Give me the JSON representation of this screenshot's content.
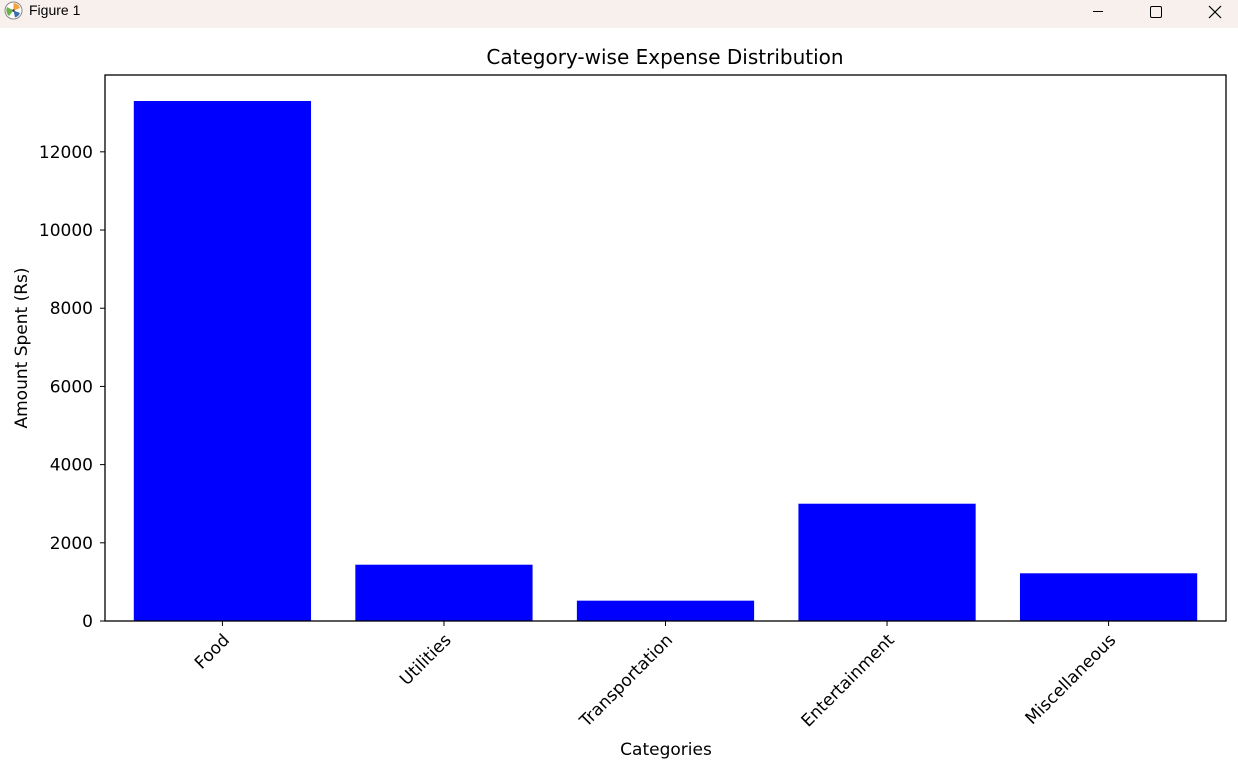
{
  "window": {
    "title": "Figure 1",
    "controls": [
      "minimize-icon",
      "maximize-icon",
      "close-icon"
    ],
    "icon": "matplotlib-app-icon"
  },
  "chart_data": {
    "type": "bar",
    "title": "Category-wise Expense Distribution",
    "xlabel": "Categories",
    "ylabel": "Amount Spent (Rs)",
    "categories": [
      "Food",
      "Utilities",
      "Transportation",
      "Entertainment",
      "Miscellaneous"
    ],
    "values": [
      13300,
      1440,
      520,
      3000,
      1220
    ],
    "ylim": [
      0,
      13965
    ],
    "yticks": [
      0,
      2000,
      4000,
      6000,
      8000,
      10000,
      12000
    ],
    "bar_color": "#0000ff",
    "grid": false,
    "xtick_rotation": 45
  }
}
